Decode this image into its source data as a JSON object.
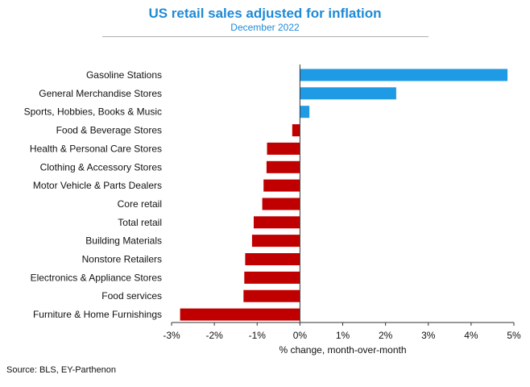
{
  "title": "US retail sales adjusted for inflation",
  "subtitle": "December 2022",
  "source": "Source: BLS, EY-Parthenon",
  "colors": {
    "positive": "#1f9be6",
    "negative": "#c00000",
    "title": "#1f8ad6"
  },
  "chart_data": {
    "type": "bar",
    "orientation": "horizontal",
    "title": "US retail sales adjusted for inflation",
    "subtitle": "December 2022",
    "xlabel": "% change, month-over-month",
    "ylabel": "",
    "xlim": [
      -3,
      5
    ],
    "xticks": [
      -3,
      -2,
      -1,
      0,
      1,
      2,
      3,
      4,
      5
    ],
    "xtick_labels": [
      "-3%",
      "-2%",
      "-1%",
      "0%",
      "1%",
      "2%",
      "3%",
      "4%",
      "5%"
    ],
    "grid": false,
    "legend": "none",
    "categories": [
      "Gasoline Stations",
      "General Merchandise Stores",
      "Sports, Hobbies, Books & Music",
      "Food & Beverage Stores",
      "Health & Personal Care Stores",
      "Clothing & Accessory Stores",
      "Motor Vehicle & Parts Dealers",
      "Core retail",
      "Total retail",
      "Building Materials",
      "Nonstore Retailers",
      "Electronics & Appliance Stores",
      "Food services",
      "Furniture & Home Furnishings"
    ],
    "values": [
      4.85,
      2.25,
      0.22,
      -0.18,
      -0.77,
      -0.78,
      -0.85,
      -0.88,
      -1.08,
      -1.12,
      -1.28,
      -1.3,
      -1.32,
      -2.8
    ]
  }
}
